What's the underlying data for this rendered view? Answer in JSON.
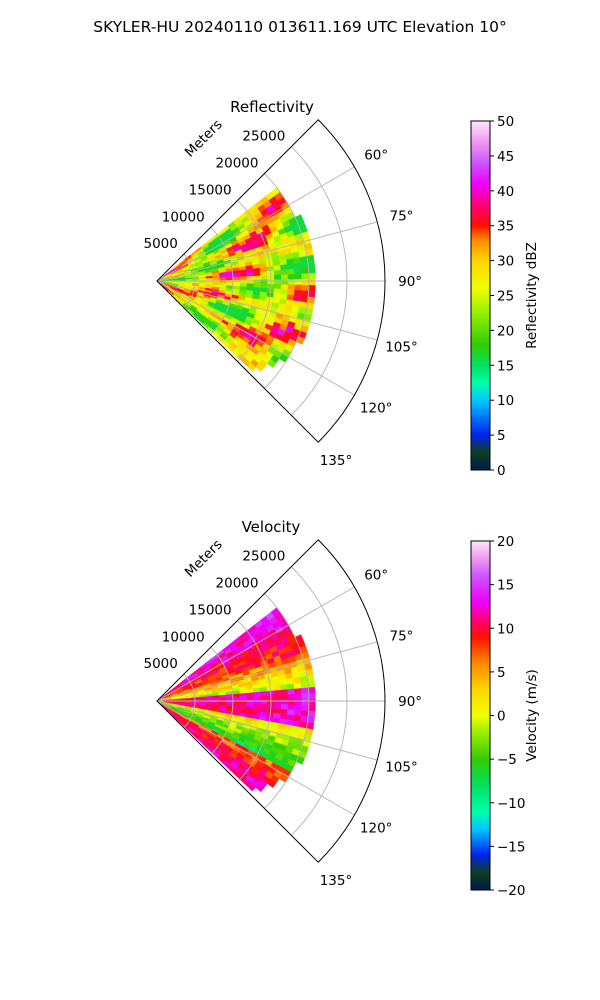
{
  "figure": {
    "title": "SKYLER-HU  20240110  013611.169 UTC Elevation 10°"
  },
  "chart_data": [
    {
      "type": "ppi-sector",
      "title": "Reflectivity",
      "range_unit_label": "Meters",
      "range_ticks": [
        5000,
        10000,
        15000,
        20000,
        25000
      ],
      "range_tick_labels": [
        "5000",
        "10000",
        "15000",
        "20000",
        "25000"
      ],
      "range_max": 30000,
      "azimuth_range_deg": [
        45,
        135
      ],
      "azimuth_ticks": [
        60,
        75,
        90,
        105,
        120,
        135
      ],
      "azimuth_tick_labels": [
        "60°",
        "75°",
        "90°",
        "105°",
        "120°",
        "135°"
      ],
      "grid": true,
      "colorbar": {
        "label": "Reflectivity dBZ",
        "min": 0,
        "max": 50,
        "ticks": [
          0,
          5,
          10,
          15,
          20,
          25,
          30,
          35,
          40,
          45,
          50
        ],
        "tick_labels": [
          "0",
          "5",
          "10",
          "15",
          "20",
          "25",
          "30",
          "35",
          "40",
          "45",
          "50"
        ],
        "stops": [
          {
            "v": 0,
            "c": "#001a4d"
          },
          {
            "v": 2.5,
            "c": "#0d4020"
          },
          {
            "v": 5,
            "c": "#0022ee"
          },
          {
            "v": 10,
            "c": "#00c8ff"
          },
          {
            "v": 12.5,
            "c": "#00ffaa"
          },
          {
            "v": 15,
            "c": "#00e060"
          },
          {
            "v": 18,
            "c": "#33cc00"
          },
          {
            "v": 22,
            "c": "#88ee00"
          },
          {
            "v": 26,
            "c": "#eeff00"
          },
          {
            "v": 30,
            "c": "#ffd500"
          },
          {
            "v": 33,
            "c": "#ff8800"
          },
          {
            "v": 35,
            "c": "#ff1100"
          },
          {
            "v": 38,
            "c": "#ff0077"
          },
          {
            "v": 41,
            "c": "#ee00ff"
          },
          {
            "v": 44,
            "c": "#cc55ff"
          },
          {
            "v": 47,
            "c": "#ee99ee"
          },
          {
            "v": 50,
            "c": "#ffe6ff"
          }
        ]
      }
    },
    {
      "type": "ppi-sector",
      "title": "Velocity",
      "range_unit_label": "Meters",
      "range_ticks": [
        5000,
        10000,
        15000,
        20000,
        25000
      ],
      "range_tick_labels": [
        "5000",
        "10000",
        "15000",
        "20000",
        "25000"
      ],
      "range_max": 30000,
      "azimuth_range_deg": [
        45,
        135
      ],
      "azimuth_ticks": [
        60,
        75,
        90,
        105,
        120,
        135
      ],
      "azimuth_tick_labels": [
        "60°",
        "75°",
        "90°",
        "105°",
        "120°",
        "135°"
      ],
      "grid": true,
      "colorbar": {
        "label": "Velocity (m/s)",
        "min": -20,
        "max": 20,
        "ticks": [
          -20,
          -15,
          -10,
          -5,
          0,
          5,
          10,
          15,
          20
        ],
        "tick_labels": [
          "−20",
          "−15",
          "−10",
          "−5",
          "0",
          "5",
          "10",
          "15",
          "20"
        ],
        "stops": [
          {
            "v": -20,
            "c": "#001a4d"
          },
          {
            "v": -18,
            "c": "#0d4020"
          },
          {
            "v": -16,
            "c": "#0022ee"
          },
          {
            "v": -13,
            "c": "#00c8ff"
          },
          {
            "v": -11,
            "c": "#00ffaa"
          },
          {
            "v": -8,
            "c": "#00e060"
          },
          {
            "v": -5,
            "c": "#33cc00"
          },
          {
            "v": -2,
            "c": "#99ee00"
          },
          {
            "v": 0,
            "c": "#eeff00"
          },
          {
            "v": 3,
            "c": "#ffd500"
          },
          {
            "v": 6,
            "c": "#ff8800"
          },
          {
            "v": 9,
            "c": "#ff1100"
          },
          {
            "v": 11,
            "c": "#ff0077"
          },
          {
            "v": 13,
            "c": "#ee00ff"
          },
          {
            "v": 16,
            "c": "#cc55ff"
          },
          {
            "v": 18,
            "c": "#ee99ee"
          },
          {
            "v": 20,
            "c": "#ffe6ff"
          }
        ]
      }
    }
  ]
}
